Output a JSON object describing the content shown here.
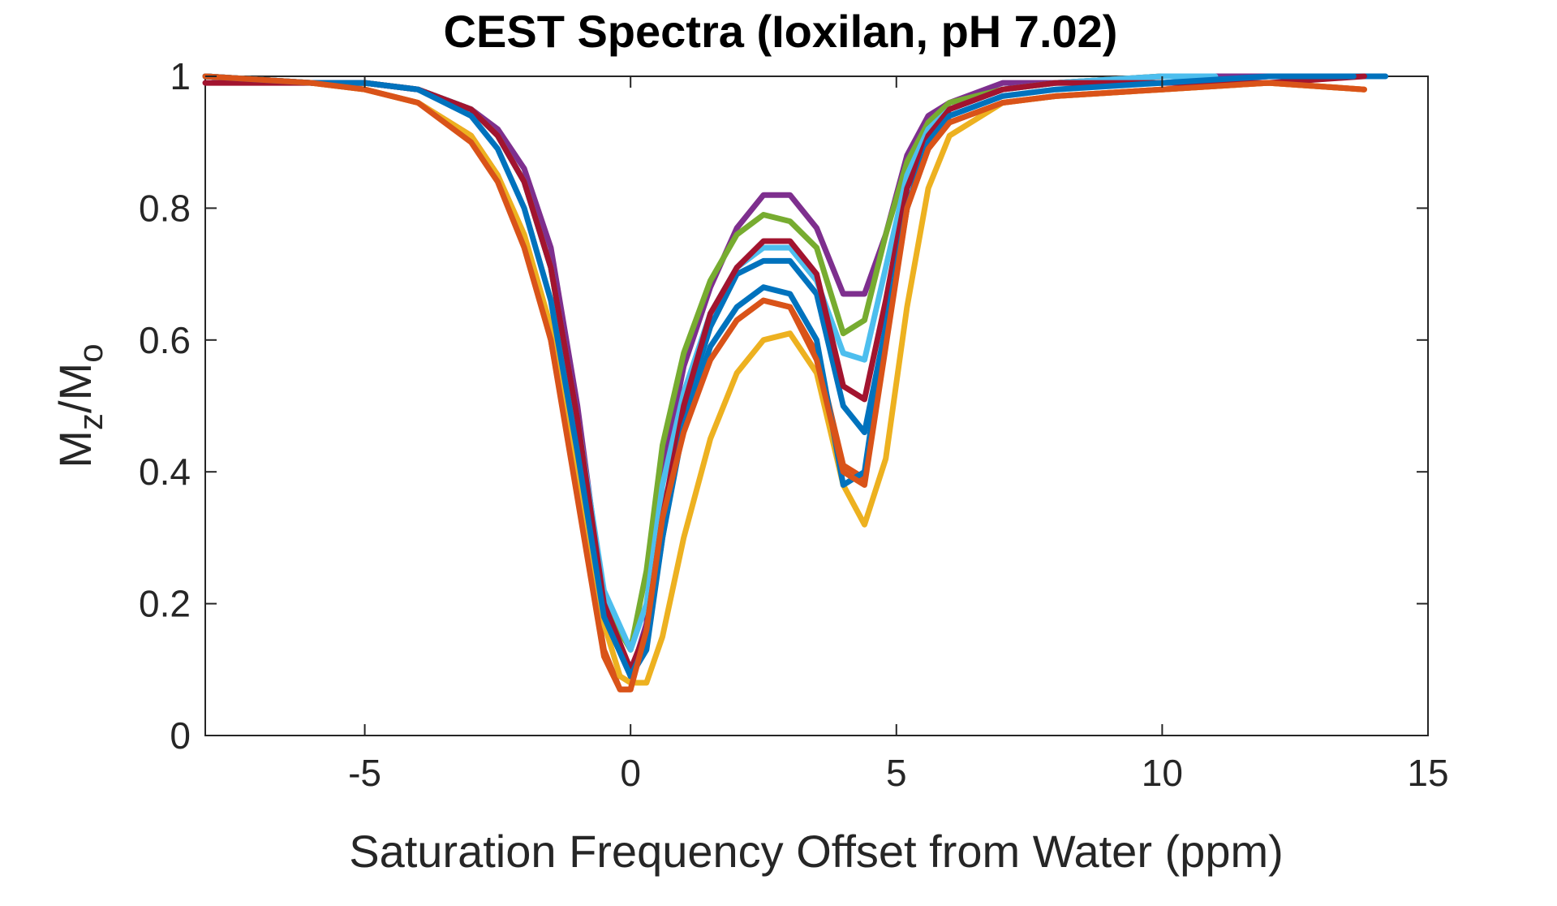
{
  "chart_data": {
    "type": "line",
    "title": "CEST Spectra (Ioxilan, pH 7.02)",
    "xlabel": "Saturation Frequency Offset from Water (ppm)",
    "ylabel": {
      "base": "M",
      "sub1": "z",
      "mid": "/M",
      "sub2": "o"
    },
    "xlim": [
      -8,
      15
    ],
    "ylim": [
      0,
      1
    ],
    "xticks": [
      -5,
      0,
      5,
      10,
      15
    ],
    "yticks": [
      0,
      0.2,
      0.4,
      0.6,
      0.8,
      1
    ],
    "xtick_labels": [
      "-5",
      "0",
      "5",
      "10",
      "15"
    ],
    "ytick_labels": [
      "0",
      "0.2",
      "0.4",
      "0.6",
      "0.8",
      "1"
    ],
    "grid": false,
    "series": [
      {
        "color": "#0072BD",
        "x": [
          -8,
          -6,
          -5,
          -4,
          -3,
          -2.5,
          -2,
          -1.5,
          -1,
          -0.5,
          0,
          0.3,
          0.6,
          1,
          1.5,
          2,
          2.5,
          3,
          3.5,
          4,
          4.4,
          4.8,
          5.2,
          5.6,
          6,
          7,
          8,
          10,
          12,
          14.2
        ],
        "y": [
          1.0,
          0.99,
          0.99,
          0.98,
          0.95,
          0.91,
          0.84,
          0.71,
          0.48,
          0.2,
          0.09,
          0.13,
          0.3,
          0.49,
          0.62,
          0.7,
          0.72,
          0.72,
          0.67,
          0.5,
          0.46,
          0.62,
          0.8,
          0.9,
          0.95,
          0.98,
          0.99,
          0.99,
          1.0,
          1.0
        ]
      },
      {
        "color": "#D95319",
        "x": [
          -8,
          -6,
          -5,
          -4,
          -3,
          -2.5,
          -2,
          -1.5,
          -1,
          -0.5,
          -0.2,
          0,
          0.3,
          0.6,
          1,
          1.5,
          2,
          2.5,
          3,
          3.5,
          4,
          4.4,
          4.8,
          5.2,
          5.6,
          6,
          7,
          8,
          10,
          12,
          13.8
        ],
        "y": [
          1.0,
          0.99,
          0.98,
          0.96,
          0.91,
          0.85,
          0.75,
          0.6,
          0.37,
          0.13,
          0.07,
          0.07,
          0.17,
          0.34,
          0.47,
          0.57,
          0.63,
          0.66,
          0.65,
          0.58,
          0.41,
          0.39,
          0.6,
          0.8,
          0.89,
          0.93,
          0.96,
          0.97,
          0.98,
          0.99,
          0.98
        ]
      },
      {
        "color": "#EDB120",
        "x": [
          -8,
          -6,
          -5,
          -4,
          -3,
          -2.5,
          -2,
          -1.5,
          -1,
          -0.5,
          -0.2,
          0,
          0.3,
          0.6,
          1,
          1.5,
          2,
          2.5,
          3,
          3.5,
          4,
          4.4,
          4.8,
          5.2,
          5.6,
          6,
          7,
          8,
          10,
          12,
          13.8
        ],
        "y": [
          1.0,
          0.99,
          0.98,
          0.96,
          0.91,
          0.85,
          0.76,
          0.62,
          0.41,
          0.17,
          0.09,
          0.08,
          0.08,
          0.15,
          0.3,
          0.45,
          0.55,
          0.6,
          0.61,
          0.55,
          0.38,
          0.32,
          0.42,
          0.65,
          0.83,
          0.91,
          0.96,
          0.97,
          0.98,
          0.99,
          0.98
        ]
      },
      {
        "color": "#7E2F8E",
        "x": [
          -8,
          -6,
          -5,
          -4,
          -3,
          -2.5,
          -2,
          -1.5,
          -1,
          -0.5,
          0,
          0.3,
          0.6,
          1,
          1.5,
          2,
          2.5,
          3,
          3.5,
          4,
          4.4,
          4.8,
          5.2,
          5.6,
          6,
          7,
          8,
          10,
          12,
          13.5
        ],
        "y": [
          1.0,
          0.99,
          0.99,
          0.98,
          0.95,
          0.92,
          0.86,
          0.74,
          0.5,
          0.2,
          0.09,
          0.17,
          0.4,
          0.56,
          0.68,
          0.77,
          0.82,
          0.82,
          0.77,
          0.67,
          0.67,
          0.76,
          0.88,
          0.94,
          0.96,
          0.99,
          0.99,
          1.0,
          1.0,
          1.0
        ]
      },
      {
        "color": "#77AC30",
        "x": [
          -8,
          -6,
          -5,
          -4,
          -3,
          -2.5,
          -2,
          -1.5,
          -1,
          -0.5,
          0,
          0.3,
          0.6,
          1,
          1.5,
          2,
          2.5,
          3,
          3.5,
          4,
          4.4,
          4.8,
          5.2,
          5.6,
          6,
          7,
          8,
          10
        ],
        "y": [
          1.0,
          0.99,
          0.99,
          0.98,
          0.95,
          0.91,
          0.84,
          0.71,
          0.47,
          0.2,
          0.13,
          0.25,
          0.44,
          0.58,
          0.69,
          0.76,
          0.79,
          0.78,
          0.74,
          0.61,
          0.63,
          0.76,
          0.87,
          0.93,
          0.96,
          0.98,
          0.99,
          1.0
        ]
      },
      {
        "color": "#4DBEEE",
        "x": [
          -8,
          -6,
          -5,
          -4,
          -3,
          -2.5,
          -2,
          -1.5,
          -1,
          -0.5,
          0,
          0.3,
          0.6,
          1,
          1.5,
          2,
          2.5,
          3,
          3.5,
          4,
          4.4,
          4.8,
          5.2,
          5.6,
          6,
          7,
          8,
          10,
          11
        ],
        "y": [
          1.0,
          0.99,
          0.99,
          0.98,
          0.95,
          0.91,
          0.84,
          0.71,
          0.48,
          0.22,
          0.13,
          0.2,
          0.38,
          0.52,
          0.64,
          0.71,
          0.74,
          0.74,
          0.69,
          0.58,
          0.57,
          0.71,
          0.85,
          0.92,
          0.95,
          0.98,
          0.99,
          1.0,
          1.0
        ]
      },
      {
        "color": "#A2142F",
        "x": [
          -8,
          -6,
          -5,
          -4,
          -3,
          -2.5,
          -2,
          -1.5,
          -1,
          -0.5,
          0,
          0.3,
          0.6,
          1,
          1.5,
          2,
          2.5,
          3,
          3.5,
          4,
          4.4,
          4.8,
          5.2,
          5.6,
          6,
          7,
          8,
          10,
          12,
          13.8
        ],
        "y": [
          0.99,
          0.99,
          0.99,
          0.98,
          0.95,
          0.91,
          0.84,
          0.71,
          0.48,
          0.2,
          0.1,
          0.16,
          0.33,
          0.5,
          0.64,
          0.71,
          0.75,
          0.75,
          0.7,
          0.53,
          0.51,
          0.66,
          0.83,
          0.91,
          0.95,
          0.98,
          0.99,
          0.99,
          0.99,
          1.0
        ]
      },
      {
        "color": "#0072BD",
        "x": [
          -8,
          -6,
          -5,
          -4,
          -3,
          -2.5,
          -2,
          -1.5,
          -1,
          -0.5,
          0,
          0.3,
          0.6,
          1,
          1.5,
          2,
          2.5,
          3,
          3.5,
          4,
          4.4,
          4.8,
          5.2,
          5.6,
          6,
          7,
          8,
          10,
          12,
          13.6
        ],
        "y": [
          1.0,
          0.99,
          0.99,
          0.98,
          0.94,
          0.89,
          0.8,
          0.66,
          0.43,
          0.18,
          0.09,
          0.14,
          0.3,
          0.47,
          0.59,
          0.65,
          0.68,
          0.67,
          0.6,
          0.38,
          0.4,
          0.62,
          0.8,
          0.9,
          0.94,
          0.97,
          0.98,
          0.99,
          1.0,
          1.0
        ]
      },
      {
        "color": "#D95319",
        "x": [
          -8,
          -6,
          -5,
          -4,
          -3,
          -2.5,
          -2,
          -1.5,
          -1,
          -0.5,
          -0.2,
          0,
          0.3,
          0.6,
          1,
          1.5,
          2,
          2.5,
          3,
          3.5,
          4,
          4.4,
          4.8,
          5.2,
          5.6,
          6,
          7,
          8,
          10,
          12,
          13.8
        ],
        "y": [
          1.0,
          0.99,
          0.98,
          0.96,
          0.9,
          0.84,
          0.74,
          0.6,
          0.36,
          0.12,
          0.07,
          0.07,
          0.16,
          0.33,
          0.46,
          0.57,
          0.63,
          0.66,
          0.65,
          0.57,
          0.4,
          0.38,
          0.59,
          0.8,
          0.89,
          0.93,
          0.96,
          0.97,
          0.98,
          0.99,
          0.98
        ]
      }
    ]
  }
}
